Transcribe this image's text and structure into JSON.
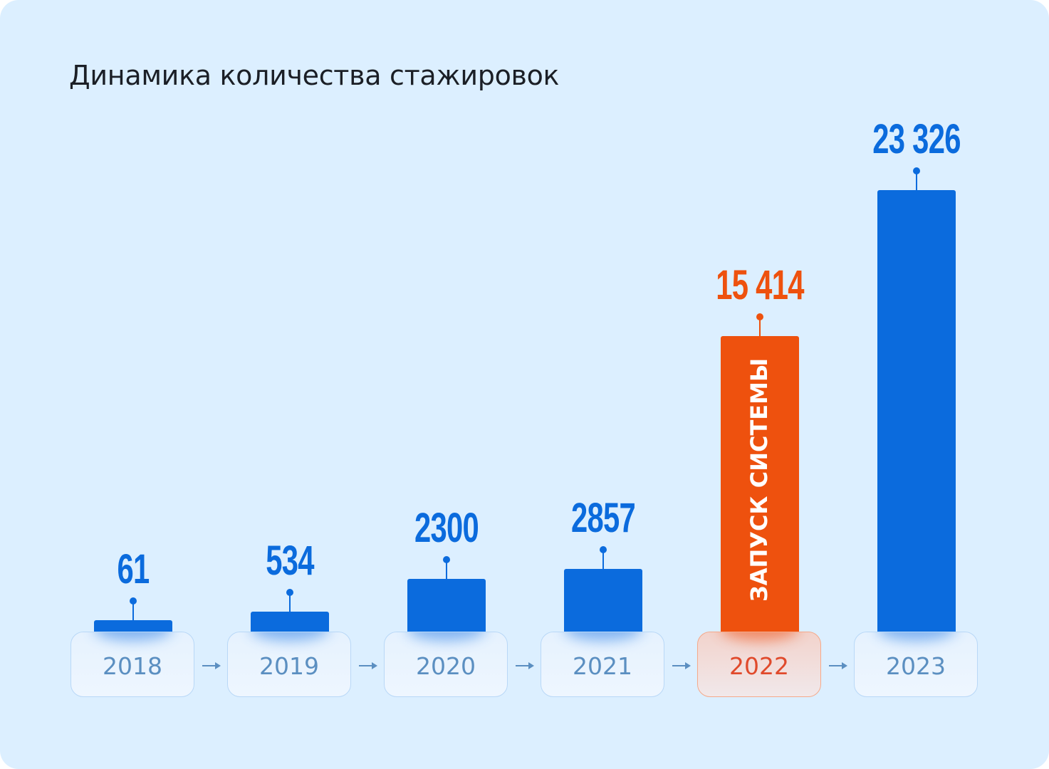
{
  "chart_data": {
    "type": "bar",
    "title": "Динамика количества стажировок",
    "categories": [
      "2018",
      "2019",
      "2020",
      "2021",
      "2022",
      "2023"
    ],
    "values": [
      61,
      534,
      2300,
      2857,
      15414,
      23326
    ],
    "value_labels": [
      "61",
      "534",
      "2300",
      "2857",
      "15 414",
      "23 326"
    ],
    "highlight_index": 4,
    "annotation": "ЗАПУСК СИСТЕМЫ",
    "xlabel": "",
    "ylabel": "",
    "grid": false
  },
  "colors": {
    "bar": "#0b6bdd",
    "highlight": "#ee510e",
    "year_text": "#5b8fc1",
    "highlight_year_text": "#e04a2c",
    "background": "#dcefff"
  }
}
